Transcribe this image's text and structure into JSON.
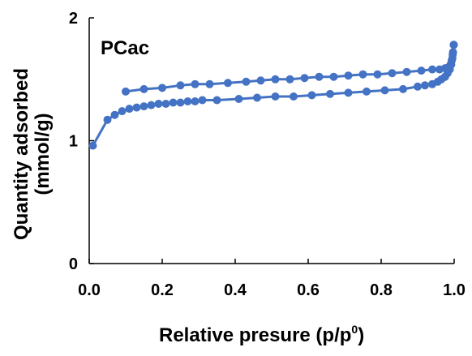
{
  "chart_data": {
    "type": "line",
    "annotation": "PCac",
    "xlabel": "Relative presure (p/p",
    "xlabel_sup": "0",
    "xlabel_close": ")",
    "ylabel_line1": "Quantity adsorbed",
    "ylabel_line2": "(mmol/g)",
    "xlim": [
      0.0,
      1.0
    ],
    "ylim": [
      0,
      2
    ],
    "x_ticks": [
      "0.0",
      "0.2",
      "0.4",
      "0.6",
      "0.8",
      "1.0"
    ],
    "y_ticks": [
      "0",
      "1",
      "2"
    ],
    "grid": false,
    "legend": "none",
    "color": "#4472C4",
    "series": [
      {
        "points": [
          [
            0.01,
            0.96
          ],
          [
            0.05,
            1.17
          ],
          [
            0.07,
            1.21
          ],
          [
            0.09,
            1.24
          ],
          [
            0.11,
            1.26
          ],
          [
            0.13,
            1.27
          ],
          [
            0.15,
            1.28
          ],
          [
            0.17,
            1.29
          ],
          [
            0.19,
            1.3
          ],
          [
            0.21,
            1.3
          ],
          [
            0.23,
            1.31
          ],
          [
            0.25,
            1.31
          ],
          [
            0.27,
            1.32
          ],
          [
            0.29,
            1.32
          ],
          [
            0.31,
            1.33
          ],
          [
            0.35,
            1.33
          ],
          [
            0.41,
            1.34
          ],
          [
            0.46,
            1.35
          ],
          [
            0.51,
            1.36
          ],
          [
            0.56,
            1.36
          ],
          [
            0.61,
            1.37
          ],
          [
            0.66,
            1.38
          ],
          [
            0.71,
            1.39
          ],
          [
            0.76,
            1.4
          ],
          [
            0.81,
            1.41
          ],
          [
            0.86,
            1.42
          ],
          [
            0.9,
            1.44
          ],
          [
            0.92,
            1.45
          ],
          [
            0.94,
            1.46
          ],
          [
            0.955,
            1.48
          ],
          [
            0.965,
            1.5
          ],
          [
            0.975,
            1.52
          ],
          [
            0.982,
            1.55
          ],
          [
            0.988,
            1.58
          ],
          [
            0.992,
            1.62
          ],
          [
            0.995,
            1.67
          ],
          [
            0.997,
            1.72
          ],
          [
            0.999,
            1.78
          ]
        ]
      },
      {
        "points": [
          [
            0.999,
            1.78
          ],
          [
            0.996,
            1.7
          ],
          [
            0.993,
            1.65
          ],
          [
            0.99,
            1.62
          ],
          [
            0.985,
            1.6
          ],
          [
            0.975,
            1.59
          ],
          [
            0.96,
            1.58
          ],
          [
            0.94,
            1.58
          ],
          [
            0.91,
            1.57
          ],
          [
            0.87,
            1.56
          ],
          [
            0.83,
            1.55
          ],
          [
            0.79,
            1.54
          ],
          [
            0.75,
            1.54
          ],
          [
            0.71,
            1.53
          ],
          [
            0.67,
            1.52
          ],
          [
            0.63,
            1.52
          ],
          [
            0.59,
            1.51
          ],
          [
            0.55,
            1.5
          ],
          [
            0.51,
            1.5
          ],
          [
            0.47,
            1.49
          ],
          [
            0.43,
            1.48
          ],
          [
            0.38,
            1.47
          ],
          [
            0.33,
            1.46
          ],
          [
            0.29,
            1.46
          ],
          [
            0.25,
            1.45
          ],
          [
            0.2,
            1.43
          ],
          [
            0.15,
            1.42
          ],
          [
            0.1,
            1.4
          ]
        ]
      }
    ]
  }
}
